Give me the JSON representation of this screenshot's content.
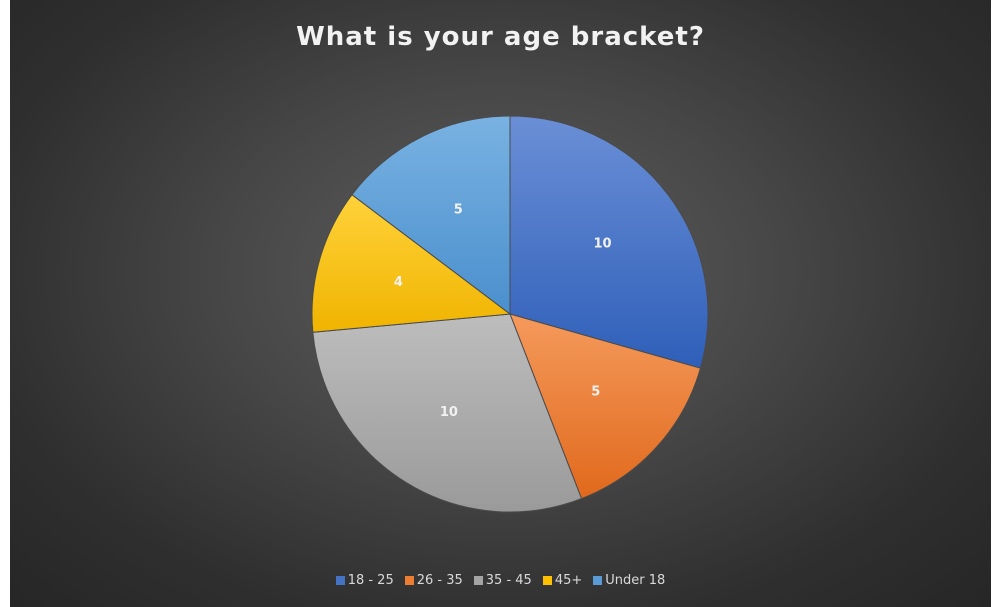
{
  "chart_data": {
    "type": "pie",
    "title": "What is your age bracket?",
    "categories": [
      "18 - 25",
      "26 - 35",
      "35 - 45",
      "45+",
      "Under 18"
    ],
    "values": [
      10,
      5,
      10,
      4,
      5
    ],
    "colors": [
      "#4472c4",
      "#ed7d31",
      "#a5a5a5",
      "#ffc000",
      "#5b9bd5"
    ],
    "start_angle_deg": 0,
    "direction": "clockwise",
    "data_labels": true,
    "legend_position": "bottom"
  }
}
